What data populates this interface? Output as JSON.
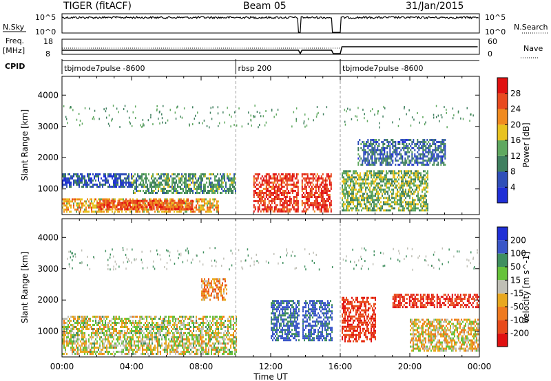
{
  "header": {
    "radar": "TIGER (fitACF)",
    "beam": "Beam 05",
    "date": "31/Jan/2015"
  },
  "status_panels": {
    "nsky_label": "N.Sky",
    "nsky_ticks": [
      "10^5",
      "10^0"
    ],
    "nsearch_label": "N.Search",
    "nsearch_ticks": [
      "10^5",
      "10^0"
    ],
    "freq_label": "Freq.",
    "freq_unit": "[MHz]",
    "freq_ticks": [
      "18",
      "8"
    ],
    "nave_label": "Nave",
    "nave_ticks": [
      "60",
      "0"
    ],
    "cpid_label": "CPID",
    "cpid_segments": [
      {
        "name": "tbjmode7pulse -8600",
        "start_h": 0,
        "end_h": 10.0
      },
      {
        "name": "rbsp 200",
        "start_h": 10.0,
        "end_h": 16.0
      },
      {
        "name": "tbjmode7pulse -8600",
        "start_h": 16.0,
        "end_h": 24.0
      }
    ],
    "data_gaps_h": [
      [
        13.6,
        13.75
      ],
      [
        15.55,
        16.05
      ]
    ]
  },
  "axes": {
    "xlabel": "Time UT",
    "xticks": [
      "00:00",
      "04:00",
      "08:00",
      "12:00",
      "16:00",
      "20:00",
      "00:00"
    ],
    "ylabel": "Slant Range [km]",
    "yticks": [
      "1000",
      "2000",
      "3000",
      "4000"
    ]
  },
  "power_colorbar": {
    "label": "Power [dB]",
    "ticks": [
      "4",
      "8",
      "12",
      "16",
      "20",
      "24",
      "28"
    ],
    "colors": [
      "#1f2fd6",
      "#2f4fb8",
      "#3f7f5f",
      "#5fa85f",
      "#e8c21f",
      "#f08a1f",
      "#e84a1f",
      "#e01010"
    ]
  },
  "velocity_colorbar": {
    "label": "Velocity [m s^-1]",
    "ticks": [
      "200",
      "100",
      "50",
      "15",
      "-15",
      "-50",
      "-100",
      "-200"
    ],
    "colors": [
      "#1f2fd6",
      "#3a56c8",
      "#3f8f5f",
      "#66c23a",
      "#bfbfb5",
      "#e8a81f",
      "#ef7a1f",
      "#e84a1a",
      "#e01010"
    ]
  },
  "chart_data": {
    "type": "heatmap",
    "x_range_h": [
      0,
      24
    ],
    "y_range_km": [
      180,
      4600
    ],
    "x_unit": "hours UT",
    "y_unit": "km",
    "regions": [
      {
        "panel": "power",
        "t_start": 0.0,
        "t_end": 4.0,
        "r_min": 1100,
        "r_max": 1500,
        "value": 6
      },
      {
        "panel": "power",
        "t_start": 0.0,
        "t_end": 9.0,
        "r_min": 300,
        "r_max": 700,
        "value": 20
      },
      {
        "panel": "power",
        "t_start": 2.0,
        "t_end": 7.5,
        "r_min": 350,
        "r_max": 650,
        "value": 26
      },
      {
        "panel": "power",
        "t_start": 4.0,
        "t_end": 10.0,
        "r_min": 900,
        "r_max": 1500,
        "value": 12
      },
      {
        "panel": "power",
        "t_start": 11.0,
        "t_end": 15.5,
        "r_min": 300,
        "r_max": 1500,
        "value": 28
      },
      {
        "panel": "power",
        "t_start": 17.0,
        "t_end": 22.0,
        "r_min": 1800,
        "r_max": 2600,
        "value": 8
      },
      {
        "panel": "power",
        "t_start": 16.0,
        "t_end": 21.0,
        "r_min": 300,
        "r_max": 1600,
        "value": 14
      },
      {
        "panel": "velocity",
        "t_start": 0.0,
        "t_end": 10.0,
        "r_min": 300,
        "r_max": 1500,
        "value": 0
      },
      {
        "panel": "velocity",
        "t_start": 8.0,
        "t_end": 9.5,
        "r_min": 2000,
        "r_max": 2700,
        "value": -60
      },
      {
        "panel": "velocity",
        "t_start": 12.0,
        "t_end": 15.5,
        "r_min": 700,
        "r_max": 2000,
        "value": 120
      },
      {
        "panel": "velocity",
        "t_start": 16.0,
        "t_end": 18.0,
        "r_min": 700,
        "r_max": 2100,
        "value": -180
      },
      {
        "panel": "velocity",
        "t_start": 19.0,
        "t_end": 24.0,
        "r_min": 1800,
        "r_max": 2200,
        "value": -200
      },
      {
        "panel": "velocity",
        "t_start": 20.0,
        "t_end": 24.0,
        "r_min": 400,
        "r_max": 1400,
        "value": -20
      }
    ]
  }
}
